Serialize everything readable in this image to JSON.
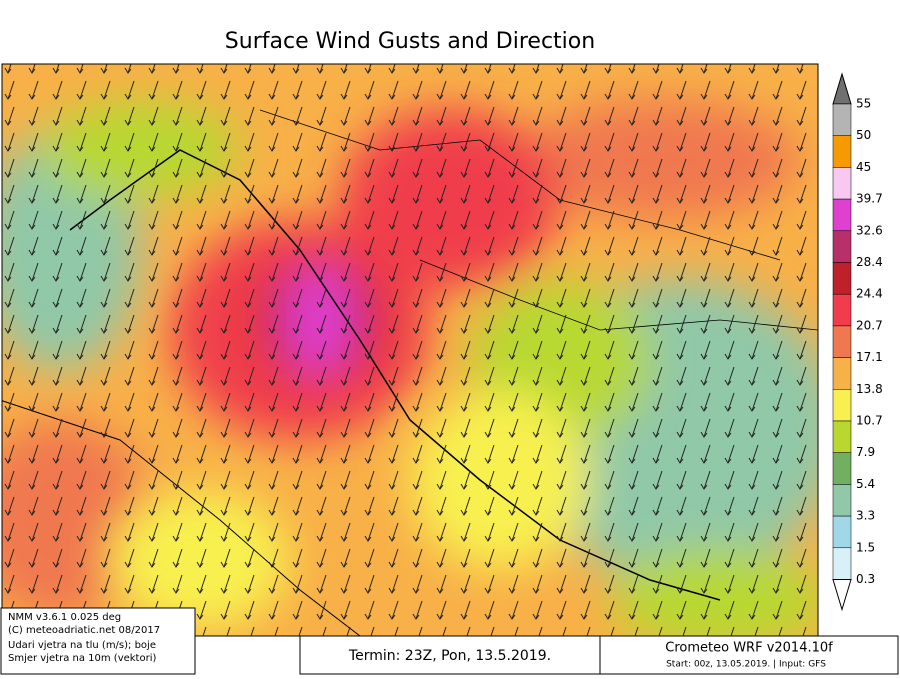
{
  "header": {
    "title": "Surface Wind Gusts and Direction"
  },
  "legend": {
    "labels": [
      "55",
      "50",
      "45",
      "39.7",
      "32.6",
      "28.4",
      "24.4",
      "20.7",
      "17.1",
      "13.8",
      "10.7",
      "7.9",
      "5.4",
      "3.3",
      "1.5",
      "0.3"
    ],
    "colors": [
      "#b4b4b4",
      "#f59a00",
      "#f8c8f0",
      "#e040d0",
      "#b8306a",
      "#c0202a",
      "#f03c4c",
      "#f07850",
      "#f8b048",
      "#f8f050",
      "#b8d830",
      "#70b060",
      "#90c8a8",
      "#a0d8e8",
      "#d8f0f8"
    ]
  },
  "footer": {
    "info": [
      "NMM v3.6.1 0.025 deg",
      "(C) meteoadriatic.net 08/2017",
      "Udari vjetra na tlu (m/s); boje",
      "Smjer vjetra na 10m (vektori)"
    ],
    "termin": "Termin: 23Z, Pon, 13.5.2019.",
    "model": "Crometeo WRF v2014.10f",
    "start": "Start: 00z, 13.05.2019. | Input: GFS"
  }
}
